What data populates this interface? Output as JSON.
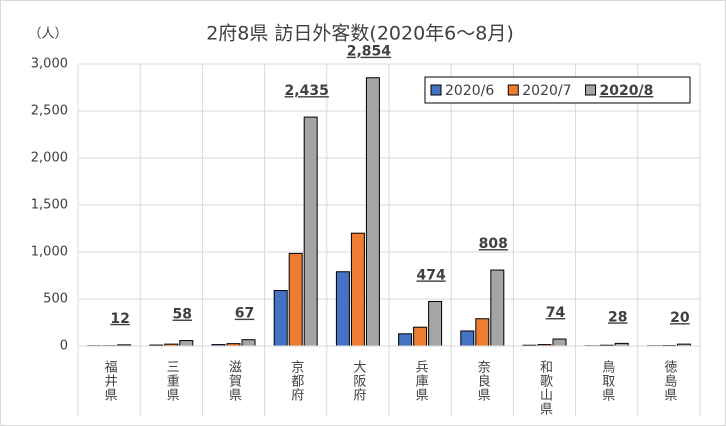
{
  "chart_data": {
    "type": "bar",
    "title": "2府8県 訪日外客数(2020年6～8月)",
    "y_label": "（人）",
    "categories": [
      "福井県",
      "三重県",
      "滋賀県",
      "京都府",
      "大阪府",
      "兵庫県",
      "奈良県",
      "和歌山県",
      "鳥取県",
      "徳島県"
    ],
    "series": [
      {
        "name": "2020/6",
        "color": "#4472c4",
        "values": [
          3,
          10,
          15,
          590,
          790,
          130,
          160,
          8,
          3,
          3
        ]
      },
      {
        "name": "2020/7",
        "color": "#ed7d31",
        "values": [
          3,
          20,
          25,
          985,
          1200,
          200,
          290,
          15,
          8,
          5
        ]
      },
      {
        "name": "2020/8",
        "color": "#a5a5a5",
        "values": [
          12,
          58,
          67,
          2435,
          2854,
          474,
          808,
          74,
          28,
          20
        ],
        "value_labels": [
          "12",
          "58",
          "67",
          "2,435",
          "2,854",
          "474",
          "808",
          "74",
          "28",
          "20"
        ]
      }
    ],
    "ylim": [
      0,
      3000
    ],
    "yticks": [
      0,
      500,
      {
        "value": 1000,
        "label": "1,000"
      },
      {
        "value": 1500,
        "label": "1,500"
      },
      {
        "value": 2000,
        "label": "2,000"
      },
      {
        "value": 2500,
        "label": "2,500"
      },
      {
        "value": 3000,
        "label": "3,000"
      }
    ],
    "grid": true,
    "legend": "upper right"
  }
}
